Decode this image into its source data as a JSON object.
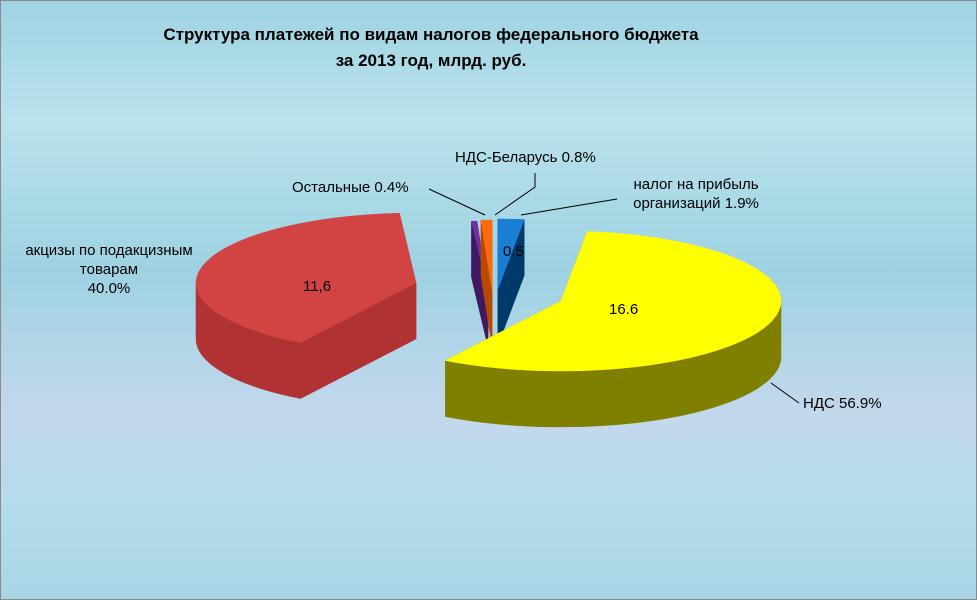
{
  "chart_data": {
    "type": "pie3d",
    "title": [
      "Структура платежей по видам налогов федерального бюджета",
      "за 2013 год, млрд. руб."
    ],
    "categories": [
      "налог на прибыль организаций",
      "НДС",
      "акцизы по подакцизным товарам",
      "Остальные",
      "НДС-Беларусь"
    ],
    "values": [
      1.9,
      56.9,
      40.0,
      0.4,
      0.8
    ],
    "value_labels": [
      "1.9%",
      "56.9%",
      "40.0%",
      "0.4%",
      "0.8%"
    ],
    "amounts": [
      0.5,
      16.6,
      11.6,
      null,
      null
    ],
    "amount_labels": [
      "0.5",
      "16.6",
      "11,6",
      null,
      null
    ],
    "colors": [
      "#1a7fd4",
      "#ffff00",
      "#d24343",
      "#7030a0",
      "#ff6a10"
    ]
  }
}
